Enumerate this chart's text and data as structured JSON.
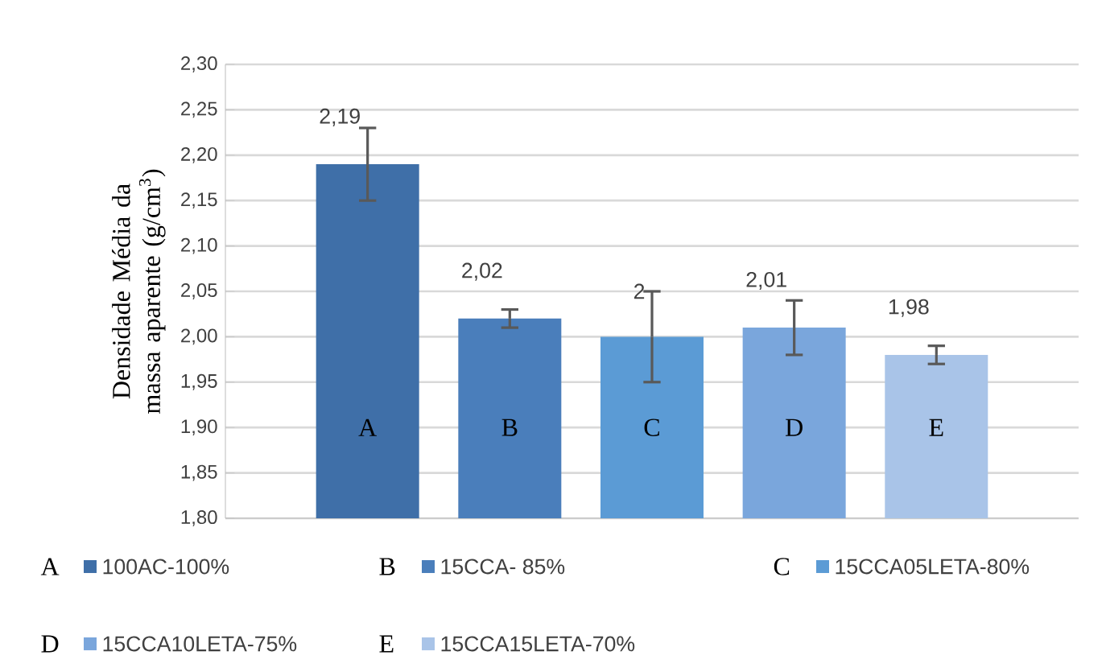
{
  "chart_data": {
    "type": "bar",
    "ylabel": "Densidade Média da massa aparente (g/cm$^{3}$)",
    "categories": [
      "A",
      "B",
      "C",
      "D",
      "E"
    ],
    "series": [
      {
        "name": "100AC-100%",
        "color": "#3f6fa8",
        "values": [
          2.19,
          null,
          null,
          null,
          null
        ],
        "errors": [
          0.04,
          null,
          null,
          null,
          null
        ],
        "value_labels": [
          "2,19",
          null,
          null,
          null,
          null
        ]
      },
      {
        "name": "15CCA- 85%",
        "color": "#4a7ebb",
        "values": [
          null,
          2.02,
          null,
          null,
          null
        ],
        "errors": [
          null,
          0.01,
          null,
          null,
          null
        ],
        "value_labels": [
          null,
          "2,02",
          null,
          null,
          null
        ]
      },
      {
        "name": "15CCA05LETA-80%",
        "color": "#5b9bd5",
        "values": [
          null,
          null,
          2,
          null,
          null
        ],
        "errors": [
          null,
          null,
          0.05,
          null,
          null
        ],
        "value_labels": [
          null,
          null,
          "2",
          null,
          null
        ]
      },
      {
        "name": "15CCA10LETA-75%",
        "color": "#7aa6dc",
        "values": [
          null,
          null,
          null,
          2.01,
          null
        ],
        "errors": [
          null,
          null,
          null,
          0.03,
          null
        ],
        "value_labels": [
          null,
          null,
          null,
          "2,01",
          null
        ]
      },
      {
        "name": "15CCA15LETA-70%",
        "color": "#a9c4e8",
        "values": [
          null,
          null,
          null,
          null,
          1.98
        ],
        "errors": [
          null,
          null,
          null,
          null,
          0.01
        ],
        "value_labels": [
          null,
          null,
          null,
          null,
          "1,98"
        ]
      }
    ],
    "ylim": [
      1.8,
      2.3
    ],
    "yticks": [
      {
        "value": 1.8,
        "label": "1,80"
      },
      {
        "value": 1.85,
        "label": "1,85"
      },
      {
        "value": 1.9,
        "label": "1,90"
      },
      {
        "value": 1.95,
        "label": "1,95"
      },
      {
        "value": 2.0,
        "label": "2,00"
      },
      {
        "value": 2.05,
        "label": "2,05"
      },
      {
        "value": 2.1,
        "label": "2,10"
      },
      {
        "value": 2.15,
        "label": "2,15"
      },
      {
        "value": 2.2,
        "label": "2,20"
      },
      {
        "value": 2.25,
        "label": "2,25"
      },
      {
        "value": 2.3,
        "label": "2,30"
      }
    ],
    "grid": "y",
    "legend": "bottom"
  }
}
